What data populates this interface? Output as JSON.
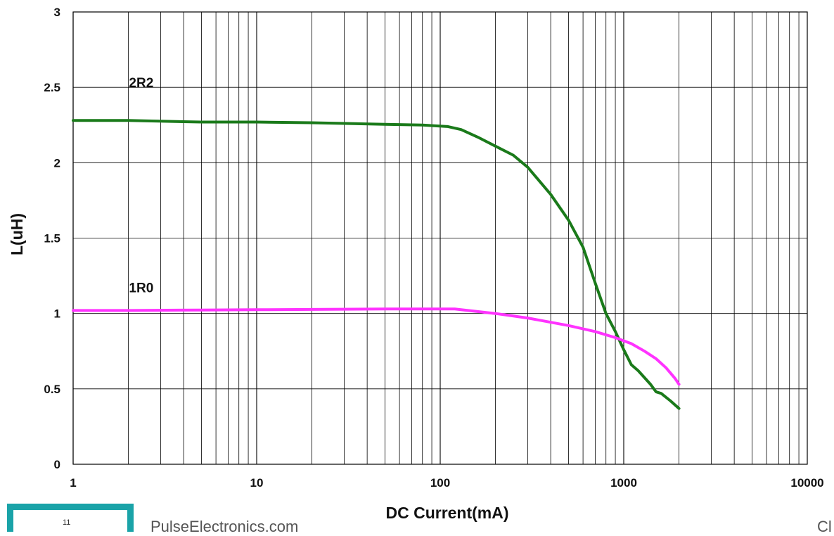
{
  "chart_data": {
    "type": "line",
    "xlabel": "DC Current(mA)",
    "ylabel": "L(uH)",
    "x_scale": "log",
    "xlim": [
      1,
      10000
    ],
    "ylim": [
      0,
      3
    ],
    "x_ticks": [
      "1",
      "10",
      "100",
      "1000",
      "10000"
    ],
    "y_ticks": [
      "0",
      "0.5",
      "1",
      "1.5",
      "2",
      "2.5",
      "3"
    ],
    "grid": true,
    "series": [
      {
        "name": "2R2",
        "color": "#1a7a1a",
        "x": [
          1,
          2,
          5,
          10,
          20,
          50,
          80,
          110,
          130,
          160,
          200,
          250,
          300,
          400,
          500,
          600,
          700,
          800,
          900,
          1000,
          1100,
          1200,
          1400,
          1500,
          1600,
          1800,
          2000
        ],
        "y": [
          2.28,
          2.28,
          2.27,
          2.27,
          2.265,
          2.255,
          2.25,
          2.24,
          2.22,
          2.17,
          2.11,
          2.05,
          1.97,
          1.79,
          1.62,
          1.44,
          1.2,
          1.0,
          0.88,
          0.76,
          0.66,
          0.62,
          0.53,
          0.48,
          0.47,
          0.42,
          0.37
        ]
      },
      {
        "name": "1R0",
        "color": "#ff33ff",
        "x": [
          1,
          2,
          5,
          10,
          20,
          50,
          100,
          120,
          200,
          300,
          500,
          700,
          900,
          1100,
          1300,
          1500,
          1700,
          1900,
          2000
        ],
        "y": [
          1.02,
          1.02,
          1.023,
          1.025,
          1.027,
          1.03,
          1.03,
          1.03,
          1.0,
          0.97,
          0.92,
          0.88,
          0.84,
          0.8,
          0.75,
          0.7,
          0.64,
          0.57,
          0.53
        ]
      }
    ]
  },
  "footer": {
    "page_number": "11",
    "site": "PulseElectronics.com",
    "right_text": "Cl"
  }
}
